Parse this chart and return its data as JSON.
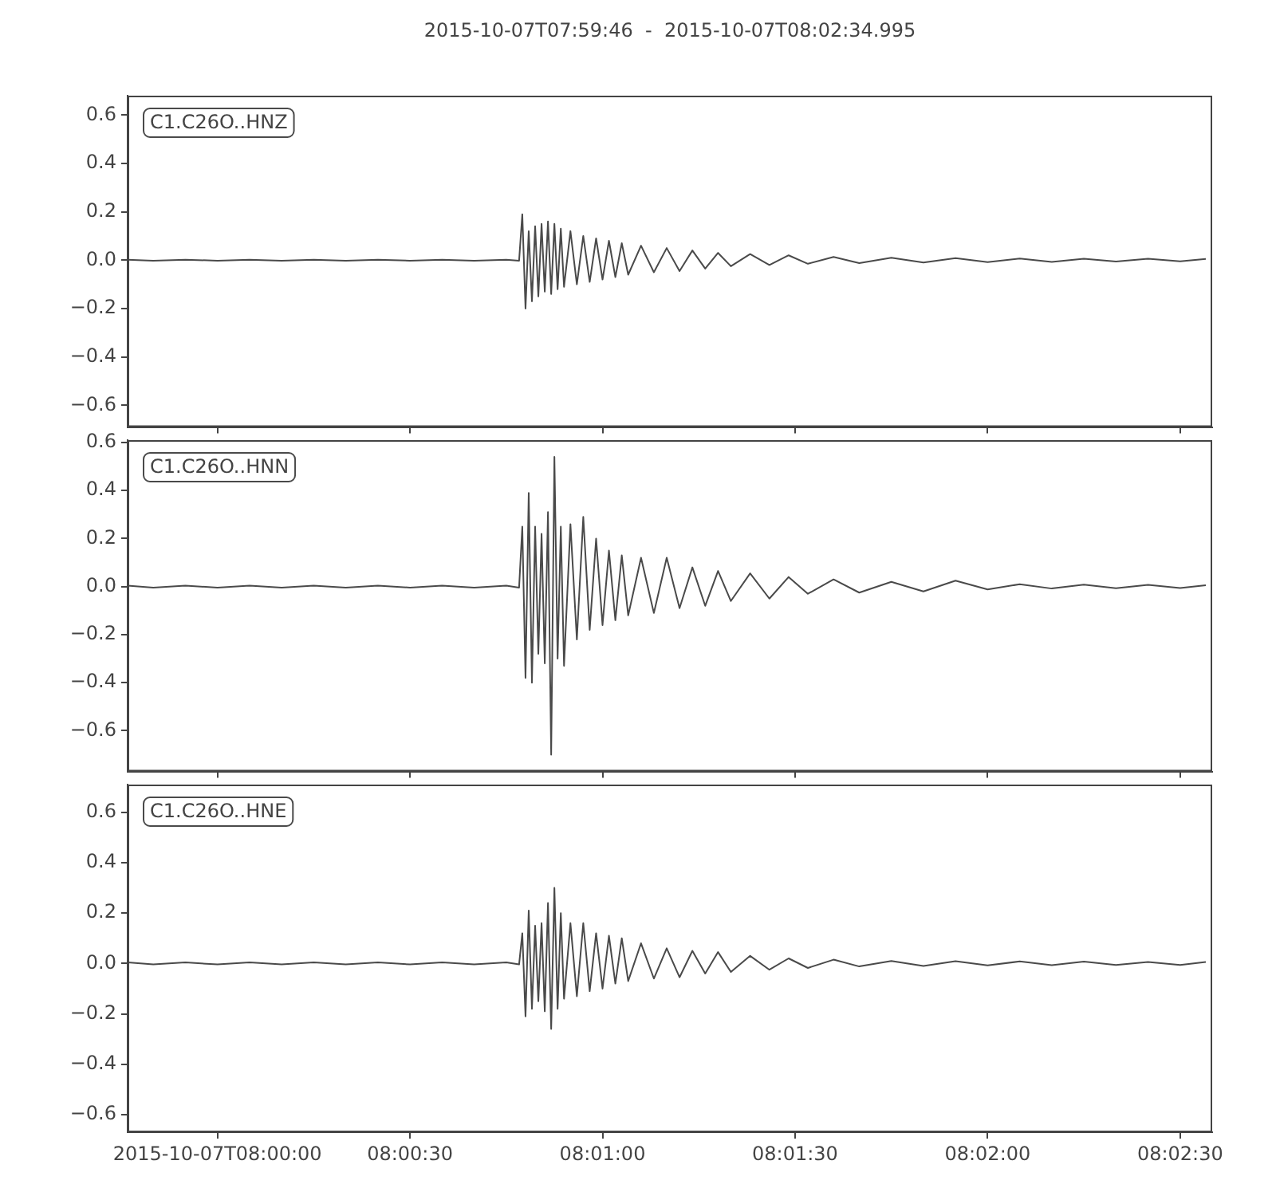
{
  "chart_data": [
    {
      "type": "line",
      "title": "2015-10-07T07:59:46  -  2015-10-07T08:02:34.995",
      "marker": "none",
      "tick_labels": "y",
      "xlim": [
        "2015-10-07T07:59:46",
        "2015-10-07T08:02:34.995"
      ],
      "xticks": [
        {
          "value": "2015-10-07T08:00:00",
          "label": null
        },
        {
          "value": "2015-10-07T08:00:30",
          "label": null
        },
        {
          "value": "2015-10-07T08:01:00",
          "label": null
        },
        {
          "value": "2015-10-07T08:01:30",
          "label": null
        },
        {
          "value": "2015-10-07T08:02:00",
          "label": null
        },
        {
          "value": "2015-10-07T08:02:30",
          "label": null
        }
      ],
      "ylim": [
        -0.69,
        0.68
      ],
      "yticks": [
        {
          "value": -0.6,
          "label": "−0.6"
        },
        {
          "value": -0.4,
          "label": "−0.4"
        },
        {
          "value": -0.2,
          "label": "−0.2"
        },
        {
          "value": 0,
          "label": "0.0"
        },
        {
          "value": 0.2,
          "label": "0.2"
        },
        {
          "value": 0.4,
          "label": "0.4"
        },
        {
          "value": 0.6,
          "label": "0.6"
        }
      ],
      "series": [
        {
          "name": "C1.C26O..HNZ",
          "color": "#4a4a4a",
          "x": [
            "2015-10-07T07:59:46",
            "2015-10-07T07:59:50",
            "2015-10-07T07:59:55",
            "2015-10-07T08:00:00",
            "2015-10-07T08:00:05",
            "2015-10-07T08:00:10",
            "2015-10-07T08:00:15",
            "2015-10-07T08:00:20",
            "2015-10-07T08:00:25",
            "2015-10-07T08:00:30",
            "2015-10-07T08:00:35",
            "2015-10-07T08:00:40",
            "2015-10-07T08:00:45",
            "2015-10-07T08:00:47",
            "2015-10-07T08:00:47.5",
            "2015-10-07T08:00:48",
            "2015-10-07T08:00:48.5",
            "2015-10-07T08:00:49",
            "2015-10-07T08:00:49.5",
            "2015-10-07T08:00:50",
            "2015-10-07T08:00:50.5",
            "2015-10-07T08:00:51",
            "2015-10-07T08:00:51.5",
            "2015-10-07T08:00:52",
            "2015-10-07T08:00:52.5",
            "2015-10-07T08:00:53",
            "2015-10-07T08:00:53.5",
            "2015-10-07T08:00:54",
            "2015-10-07T08:00:55",
            "2015-10-07T08:00:56",
            "2015-10-07T08:00:57",
            "2015-10-07T08:00:58",
            "2015-10-07T08:00:59",
            "2015-10-07T08:01:00",
            "2015-10-07T08:01:01",
            "2015-10-07T08:01:02",
            "2015-10-07T08:01:03",
            "2015-10-07T08:01:04",
            "2015-10-07T08:01:06",
            "2015-10-07T08:01:08",
            "2015-10-07T08:01:10",
            "2015-10-07T08:01:12",
            "2015-10-07T08:01:14",
            "2015-10-07T08:01:16",
            "2015-10-07T08:01:18",
            "2015-10-07T08:01:20",
            "2015-10-07T08:01:23",
            "2015-10-07T08:01:26",
            "2015-10-07T08:01:29",
            "2015-10-07T08:01:32",
            "2015-10-07T08:01:36",
            "2015-10-07T08:01:40",
            "2015-10-07T08:01:45",
            "2015-10-07T08:01:50",
            "2015-10-07T08:01:55",
            "2015-10-07T08:02:00",
            "2015-10-07T08:02:05",
            "2015-10-07T08:02:10",
            "2015-10-07T08:02:15",
            "2015-10-07T08:02:20",
            "2015-10-07T08:02:25",
            "2015-10-07T08:02:30",
            "2015-10-07T08:02:34"
          ],
          "values": [
            0.002,
            -0.002,
            0.002,
            -0.002,
            0.002,
            -0.002,
            0.002,
            -0.002,
            0.002,
            -0.002,
            0.002,
            -0.002,
            0.002,
            -0.002,
            0.19,
            -0.2,
            0.12,
            -0.17,
            0.14,
            -0.15,
            0.15,
            -0.13,
            0.16,
            -0.14,
            0.15,
            -0.12,
            0.13,
            -0.11,
            0.12,
            -0.1,
            0.1,
            -0.09,
            0.09,
            -0.08,
            0.08,
            -0.07,
            0.07,
            -0.06,
            0.06,
            -0.05,
            0.05,
            -0.045,
            0.04,
            -0.035,
            0.03,
            -0.025,
            0.025,
            -0.02,
            0.02,
            -0.015,
            0.013,
            -0.012,
            0.01,
            -0.01,
            0.008,
            -0.008,
            0.007,
            -0.007,
            0.006,
            -0.006,
            0.006,
            -0.005,
            0.005
          ]
        }
      ]
    },
    {
      "type": "line",
      "marker": "none",
      "tick_labels": "y",
      "xlim": [
        "2015-10-07T07:59:46",
        "2015-10-07T08:02:34.995"
      ],
      "xticks": [
        {
          "value": "2015-10-07T08:00:00",
          "label": null
        },
        {
          "value": "2015-10-07T08:00:30",
          "label": null
        },
        {
          "value": "2015-10-07T08:01:00",
          "label": null
        },
        {
          "value": "2015-10-07T08:01:30",
          "label": null
        },
        {
          "value": "2015-10-07T08:02:00",
          "label": null
        },
        {
          "value": "2015-10-07T08:02:30",
          "label": null
        }
      ],
      "ylim": [
        -0.77,
        0.61
      ],
      "yticks": [
        {
          "value": -0.6,
          "label": "−0.6"
        },
        {
          "value": -0.4,
          "label": "−0.4"
        },
        {
          "value": -0.2,
          "label": "−0.2"
        },
        {
          "value": 0,
          "label": "0.0"
        },
        {
          "value": 0.2,
          "label": "0.2"
        },
        {
          "value": 0.4,
          "label": "0.4"
        },
        {
          "value": 0.6,
          "label": "0.6"
        }
      ],
      "series": [
        {
          "name": "C1.C26O..HNN",
          "color": "#4a4a4a",
          "x": [
            "2015-10-07T07:59:46",
            "2015-10-07T07:59:50",
            "2015-10-07T07:59:55",
            "2015-10-07T08:00:00",
            "2015-10-07T08:00:05",
            "2015-10-07T08:00:10",
            "2015-10-07T08:00:15",
            "2015-10-07T08:00:20",
            "2015-10-07T08:00:25",
            "2015-10-07T08:00:30",
            "2015-10-07T08:00:35",
            "2015-10-07T08:00:40",
            "2015-10-07T08:00:45",
            "2015-10-07T08:00:47",
            "2015-10-07T08:00:47.5",
            "2015-10-07T08:00:48",
            "2015-10-07T08:00:48.5",
            "2015-10-07T08:00:49",
            "2015-10-07T08:00:49.5",
            "2015-10-07T08:00:50",
            "2015-10-07T08:00:50.5",
            "2015-10-07T08:00:51",
            "2015-10-07T08:00:51.5",
            "2015-10-07T08:00:52",
            "2015-10-07T08:00:52.5",
            "2015-10-07T08:00:53",
            "2015-10-07T08:00:53.5",
            "2015-10-07T08:00:54",
            "2015-10-07T08:00:55",
            "2015-10-07T08:00:56",
            "2015-10-07T08:00:57",
            "2015-10-07T08:00:58",
            "2015-10-07T08:00:59",
            "2015-10-07T08:01:00",
            "2015-10-07T08:01:01",
            "2015-10-07T08:01:02",
            "2015-10-07T08:01:03",
            "2015-10-07T08:01:04",
            "2015-10-07T08:01:06",
            "2015-10-07T08:01:08",
            "2015-10-07T08:01:10",
            "2015-10-07T08:01:12",
            "2015-10-07T08:01:14",
            "2015-10-07T08:01:16",
            "2015-10-07T08:01:18",
            "2015-10-07T08:01:20",
            "2015-10-07T08:01:23",
            "2015-10-07T08:01:26",
            "2015-10-07T08:01:29",
            "2015-10-07T08:01:32",
            "2015-10-07T08:01:36",
            "2015-10-07T08:01:40",
            "2015-10-07T08:01:45",
            "2015-10-07T08:01:50",
            "2015-10-07T08:01:55",
            "2015-10-07T08:02:00",
            "2015-10-07T08:02:05",
            "2015-10-07T08:02:10",
            "2015-10-07T08:02:15",
            "2015-10-07T08:02:20",
            "2015-10-07T08:02:25",
            "2015-10-07T08:02:30",
            "2015-10-07T08:02:34"
          ],
          "values": [
            0.004,
            -0.004,
            0.004,
            -0.004,
            0.004,
            -0.004,
            0.004,
            -0.004,
            0.004,
            -0.004,
            0.004,
            -0.004,
            0.004,
            -0.004,
            0.25,
            -0.38,
            0.39,
            -0.4,
            0.25,
            -0.28,
            0.22,
            -0.32,
            0.31,
            -0.7,
            0.54,
            -0.3,
            0.25,
            -0.33,
            0.26,
            -0.22,
            0.29,
            -0.18,
            0.2,
            -0.16,
            0.15,
            -0.14,
            0.13,
            -0.12,
            0.12,
            -0.11,
            0.12,
            -0.09,
            0.08,
            -0.08,
            0.065,
            -0.06,
            0.055,
            -0.05,
            0.04,
            -0.03,
            0.03,
            -0.025,
            0.02,
            -0.02,
            0.025,
            -0.012,
            0.01,
            -0.008,
            0.008,
            -0.007,
            0.007,
            -0.006,
            0.006
          ]
        }
      ]
    },
    {
      "type": "line",
      "marker": "none",
      "xlim": [
        "2015-10-07T07:59:46",
        "2015-10-07T08:02:34.995"
      ],
      "xticks": [
        {
          "value": "2015-10-07T08:00:00",
          "label": "2015-10-07T08:00:00"
        },
        {
          "value": "2015-10-07T08:00:30",
          "label": "08:00:30"
        },
        {
          "value": "2015-10-07T08:01:00",
          "label": "08:01:00"
        },
        {
          "value": "2015-10-07T08:01:30",
          "label": "08:01:30"
        },
        {
          "value": "2015-10-07T08:02:00",
          "label": "08:02:00"
        },
        {
          "value": "2015-10-07T08:02:30",
          "label": "08:02:30"
        }
      ],
      "ylim": [
        -0.67,
        0.71
      ],
      "yticks": [
        {
          "value": -0.6,
          "label": "−0.6"
        },
        {
          "value": -0.4,
          "label": "−0.4"
        },
        {
          "value": -0.2,
          "label": "−0.2"
        },
        {
          "value": 0,
          "label": "0.0"
        },
        {
          "value": 0.2,
          "label": "0.2"
        },
        {
          "value": 0.4,
          "label": "0.4"
        },
        {
          "value": 0.6,
          "label": "0.6"
        }
      ],
      "series": [
        {
          "name": "C1.C26O..HNE",
          "color": "#4a4a4a",
          "x": [
            "2015-10-07T07:59:46",
            "2015-10-07T07:59:50",
            "2015-10-07T07:59:55",
            "2015-10-07T08:00:00",
            "2015-10-07T08:00:05",
            "2015-10-07T08:00:10",
            "2015-10-07T08:00:15",
            "2015-10-07T08:00:20",
            "2015-10-07T08:00:25",
            "2015-10-07T08:00:30",
            "2015-10-07T08:00:35",
            "2015-10-07T08:00:40",
            "2015-10-07T08:00:45",
            "2015-10-07T08:00:47",
            "2015-10-07T08:00:47.5",
            "2015-10-07T08:00:48",
            "2015-10-07T08:00:48.5",
            "2015-10-07T08:00:49",
            "2015-10-07T08:00:49.5",
            "2015-10-07T08:00:50",
            "2015-10-07T08:00:50.5",
            "2015-10-07T08:00:51",
            "2015-10-07T08:00:51.5",
            "2015-10-07T08:00:52",
            "2015-10-07T08:00:52.5",
            "2015-10-07T08:00:53",
            "2015-10-07T08:00:53.5",
            "2015-10-07T08:00:54",
            "2015-10-07T08:00:55",
            "2015-10-07T08:00:56",
            "2015-10-07T08:00:57",
            "2015-10-07T08:00:58",
            "2015-10-07T08:00:59",
            "2015-10-07T08:01:00",
            "2015-10-07T08:01:01",
            "2015-10-07T08:01:02",
            "2015-10-07T08:01:03",
            "2015-10-07T08:01:04",
            "2015-10-07T08:01:06",
            "2015-10-07T08:01:08",
            "2015-10-07T08:01:10",
            "2015-10-07T08:01:12",
            "2015-10-07T08:01:14",
            "2015-10-07T08:01:16",
            "2015-10-07T08:01:18",
            "2015-10-07T08:01:20",
            "2015-10-07T08:01:23",
            "2015-10-07T08:01:26",
            "2015-10-07T08:01:29",
            "2015-10-07T08:01:32",
            "2015-10-07T08:01:36",
            "2015-10-07T08:01:40",
            "2015-10-07T08:01:45",
            "2015-10-07T08:01:50",
            "2015-10-07T08:01:55",
            "2015-10-07T08:02:00",
            "2015-10-07T08:02:05",
            "2015-10-07T08:02:10",
            "2015-10-07T08:02:15",
            "2015-10-07T08:02:20",
            "2015-10-07T08:02:25",
            "2015-10-07T08:02:30",
            "2015-10-07T08:02:34"
          ],
          "values": [
            0.004,
            -0.004,
            0.004,
            -0.004,
            0.004,
            -0.004,
            0.004,
            -0.004,
            0.004,
            -0.004,
            0.004,
            -0.004,
            0.004,
            -0.004,
            0.12,
            -0.21,
            0.21,
            -0.18,
            0.15,
            -0.15,
            0.16,
            -0.19,
            0.24,
            -0.26,
            0.3,
            -0.18,
            0.2,
            -0.14,
            0.16,
            -0.13,
            0.16,
            -0.11,
            0.12,
            -0.1,
            0.11,
            -0.08,
            0.1,
            -0.07,
            0.08,
            -0.06,
            0.06,
            -0.055,
            0.05,
            -0.04,
            0.045,
            -0.034,
            0.03,
            -0.025,
            0.02,
            -0.018,
            0.015,
            -0.012,
            0.01,
            -0.01,
            0.009,
            -0.008,
            0.008,
            -0.007,
            0.007,
            -0.006,
            0.006,
            -0.006,
            0.006
          ]
        }
      ]
    }
  ]
}
